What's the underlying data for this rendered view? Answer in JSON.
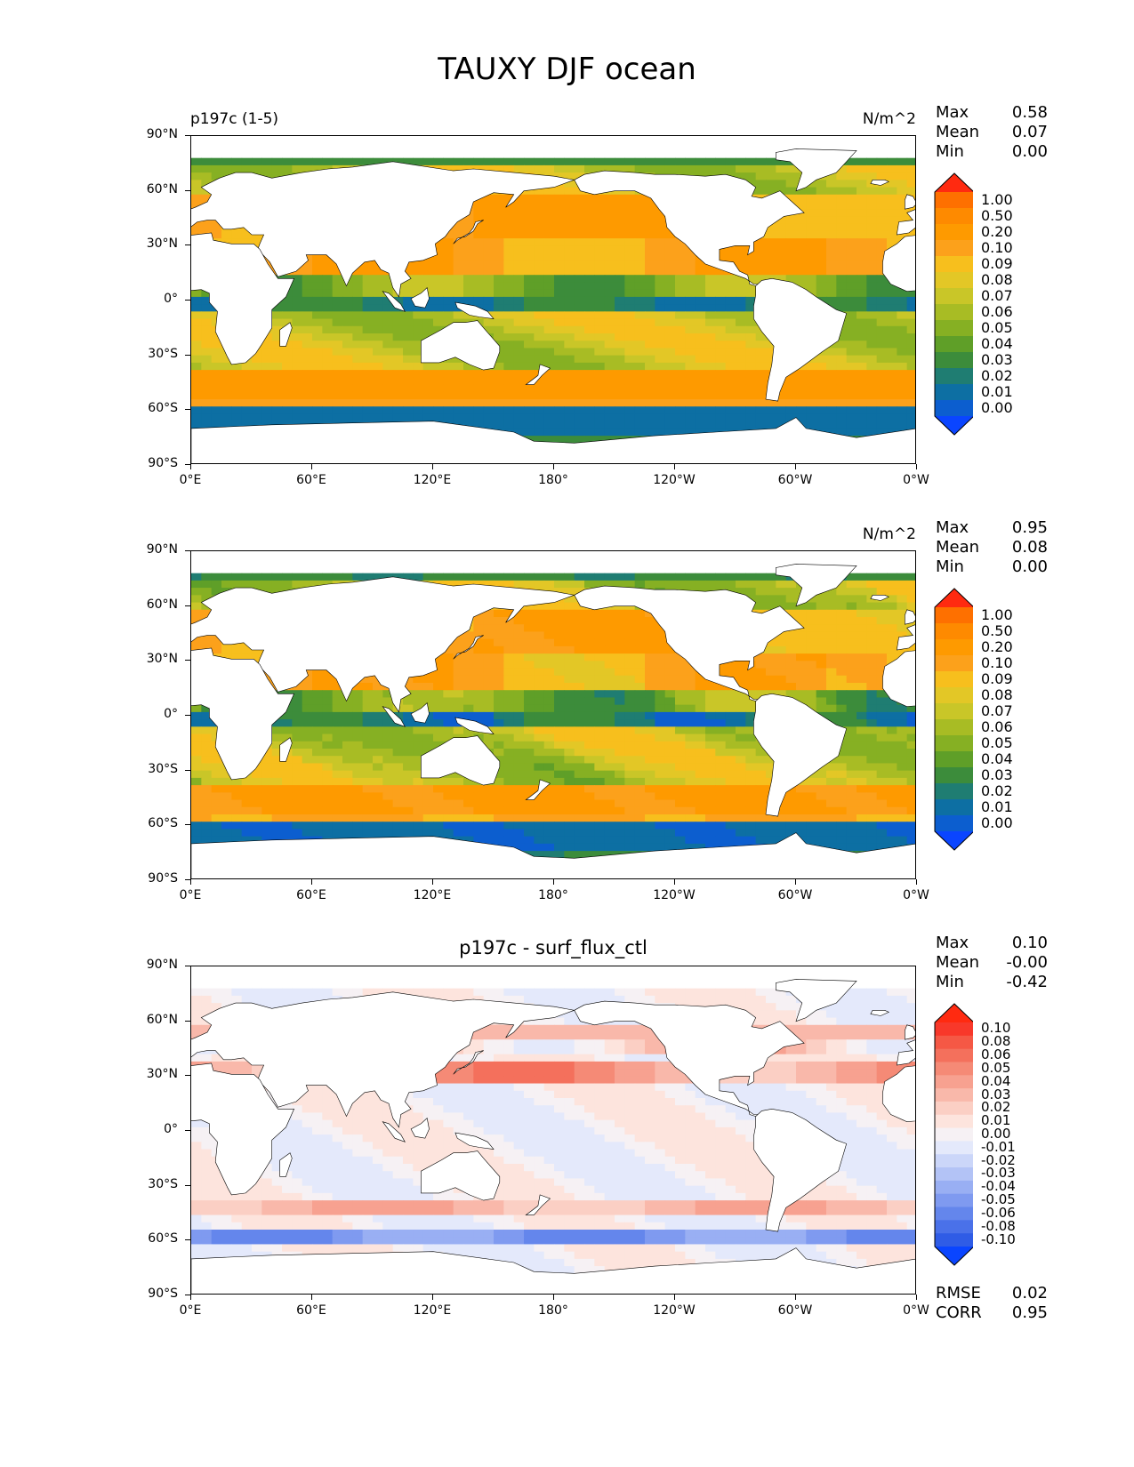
{
  "title": "TAUXY DJF ocean",
  "x_ticks": [
    "0°E",
    "60°E",
    "120°E",
    "180°",
    "120°W",
    "60°W",
    "0°W"
  ],
  "y_ticks": [
    "90°N",
    "60°N",
    "30°N",
    "0°",
    "30°S",
    "60°S",
    "90°S"
  ],
  "panels": [
    {
      "left_title": "p197c (1-5)",
      "center_title": "",
      "units": "N/m^2",
      "stats": [
        {
          "name": "Max",
          "value": "0.58"
        },
        {
          "name": "Mean",
          "value": "0.07"
        },
        {
          "name": "Min",
          "value": "0.00"
        }
      ],
      "colorbar_labels": [
        "1.00",
        "0.50",
        "0.20",
        "0.10",
        "0.09",
        "0.08",
        "0.07",
        "0.06",
        "0.05",
        "0.04",
        "0.03",
        "0.02",
        "0.01",
        "0.00"
      ],
      "colorbar_colors": [
        "#fe7000",
        "#fe8a00",
        "#fe9a00",
        "#fca11b",
        "#f7bf1d",
        "#e3c726",
        "#c9c628",
        "#a8bc24",
        "#86b023",
        "#5f9f28",
        "#3c8c3b",
        "#1f7d72",
        "#0d6fa3",
        "#0c5ecf"
      ],
      "overflow_colors": {
        "above": "#ff2a10",
        "below": "#0a45ff"
      },
      "footer": []
    },
    {
      "left_title": "",
      "center_title": "",
      "units": "N/m^2",
      "stats": [
        {
          "name": "Max",
          "value": "0.95"
        },
        {
          "name": "Mean",
          "value": "0.08"
        },
        {
          "name": "Min",
          "value": "0.00"
        }
      ],
      "colorbar_labels": [
        "1.00",
        "0.50",
        "0.20",
        "0.10",
        "0.09",
        "0.08",
        "0.07",
        "0.06",
        "0.05",
        "0.04",
        "0.03",
        "0.02",
        "0.01",
        "0.00"
      ],
      "colorbar_colors": [
        "#fe7000",
        "#fe8a00",
        "#fe9a00",
        "#fca11b",
        "#f7bf1d",
        "#e3c726",
        "#c9c628",
        "#a8bc24",
        "#86b023",
        "#5f9f28",
        "#3c8c3b",
        "#1f7d72",
        "#0d6fa3",
        "#0c5ecf"
      ],
      "overflow_colors": {
        "above": "#ff2a10",
        "below": "#0a45ff"
      },
      "footer": []
    },
    {
      "left_title": "",
      "center_title": "p197c - surf_flux_ctl",
      "units": "",
      "stats": [
        {
          "name": "Max",
          "value": "0.10"
        },
        {
          "name": "Mean",
          "value": "-0.00"
        },
        {
          "name": "Min",
          "value": "-0.42"
        }
      ],
      "colorbar_labels": [
        "0.10",
        "0.08",
        "0.06",
        "0.05",
        "0.04",
        "0.03",
        "0.02",
        "0.01",
        "0.00",
        "-0.01",
        "-0.02",
        "-0.03",
        "-0.04",
        "-0.05",
        "-0.06",
        "-0.08",
        "-0.10"
      ],
      "colorbar_colors": [
        "#f8382a",
        "#f55845",
        "#f4705c",
        "#f58a76",
        "#f7a190",
        "#f9b8aa",
        "#fbcfc4",
        "#fde4dd",
        "#f6f1f4",
        "#e4e9fb",
        "#cbd6f9",
        "#b3c3f6",
        "#99aff3",
        "#7f9af0",
        "#6486ec",
        "#4a71e9",
        "#2f5ce6"
      ],
      "overflow_colors": {
        "above": "#ff2a10",
        "below": "#0a45ff"
      },
      "footer": [
        {
          "name": "RMSE",
          "value": "0.02"
        },
        {
          "name": "CORR",
          "value": "0.95"
        }
      ]
    }
  ]
}
